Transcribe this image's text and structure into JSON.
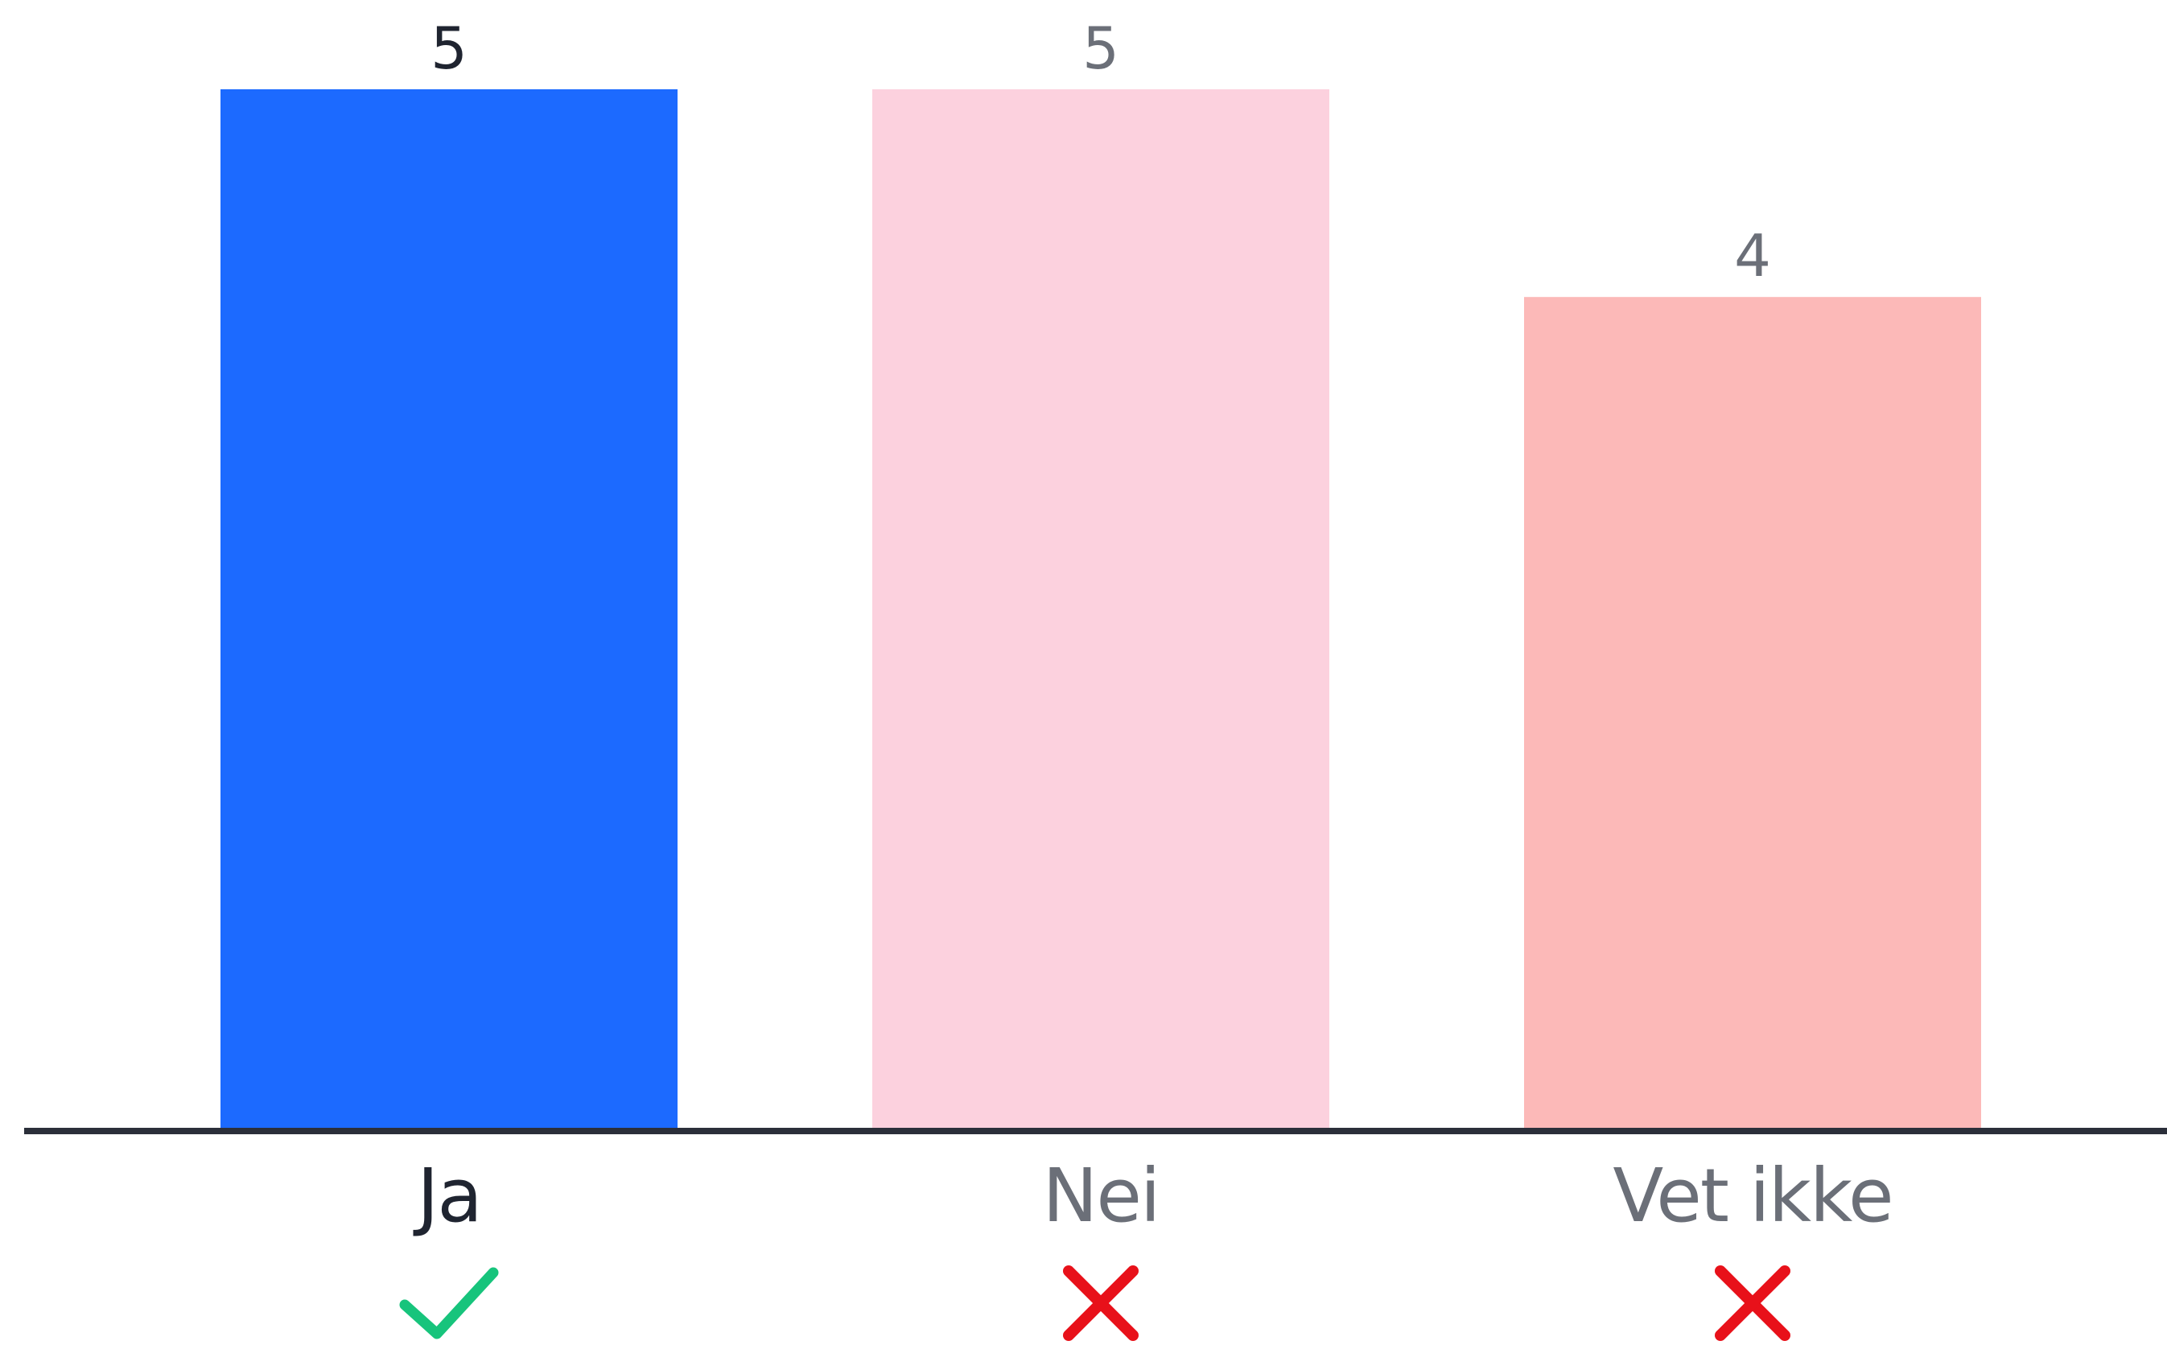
{
  "chart_data": {
    "type": "bar",
    "categories": [
      "Ja",
      "Nei",
      "Vet ikke"
    ],
    "values": [
      5,
      5,
      4
    ],
    "ylim": [
      0,
      5
    ],
    "grid": false,
    "title": "",
    "xlabel": "",
    "ylabel": "",
    "bar_colors": [
      "#1c6aff",
      "#fcd1de",
      "#fcb9b8"
    ],
    "value_label_colors": [
      "#1f2430",
      "#6b6f78",
      "#6b6f78"
    ],
    "category_label_colors": [
      "#1f2430",
      "#6b6f78",
      "#6b6f78"
    ],
    "axis_color": "#2b2f3a",
    "markers": [
      {
        "icon": "check-icon",
        "color": "#17c47c"
      },
      {
        "icon": "cross-icon",
        "color": "#e8111a"
      },
      {
        "icon": "cross-icon",
        "color": "#e8111a"
      }
    ]
  }
}
